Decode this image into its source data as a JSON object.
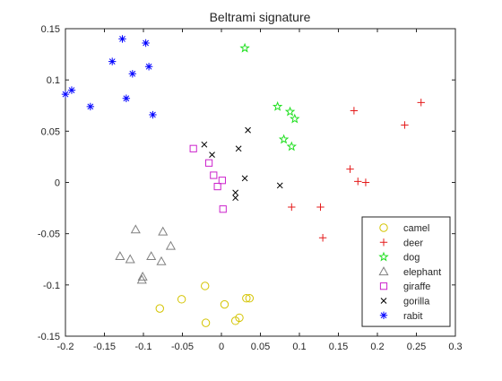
{
  "chart_data": {
    "type": "scatter",
    "title": "Beltrami signature",
    "xlabel": "",
    "ylabel": "",
    "xlim": [
      -0.2,
      0.3
    ],
    "ylim": [
      -0.15,
      0.15
    ],
    "xticks": [
      "-0.2",
      "-0.15",
      "-0.1",
      "-0.05",
      "0",
      "0.05",
      "0.1",
      "0.15",
      "0.2",
      "0.25",
      "0.3"
    ],
    "yticks": [
      "-0.15",
      "-0.1",
      "-0.05",
      "0",
      "0.05",
      "0.1",
      "0.15"
    ],
    "grid": false,
    "legend": {
      "position": "bottom-right"
    },
    "series": [
      {
        "name": "camel",
        "marker": "circle",
        "color": "#d4c400",
        "points": [
          [
            -0.079,
            -0.123
          ],
          [
            -0.051,
            -0.114
          ],
          [
            -0.021,
            -0.101
          ],
          [
            -0.02,
            -0.137
          ],
          [
            0.004,
            -0.119
          ],
          [
            0.018,
            -0.135
          ],
          [
            0.023,
            -0.132
          ],
          [
            0.032,
            -0.113
          ],
          [
            0.036,
            -0.113
          ]
        ]
      },
      {
        "name": "deer",
        "marker": "plus",
        "color": "#e41a1a",
        "points": [
          [
            0.09,
            -0.024
          ],
          [
            0.127,
            -0.024
          ],
          [
            0.13,
            -0.054
          ],
          [
            0.165,
            0.013
          ],
          [
            0.17,
            0.07
          ],
          [
            0.175,
            0.001
          ],
          [
            0.185,
            0.0
          ],
          [
            0.235,
            0.056
          ],
          [
            0.256,
            0.078
          ]
        ]
      },
      {
        "name": "dog",
        "marker": "star",
        "color": "#22e022",
        "points": [
          [
            0.03,
            0.131
          ],
          [
            0.072,
            0.074
          ],
          [
            0.08,
            0.042
          ],
          [
            0.088,
            0.069
          ],
          [
            0.09,
            0.035
          ],
          [
            0.094,
            0.062
          ]
        ]
      },
      {
        "name": "elephant",
        "marker": "triangle",
        "color": "#808080",
        "points": [
          [
            -0.13,
            -0.072
          ],
          [
            -0.117,
            -0.075
          ],
          [
            -0.11,
            -0.046
          ],
          [
            -0.101,
            -0.092
          ],
          [
            -0.102,
            -0.095
          ],
          [
            -0.09,
            -0.072
          ],
          [
            -0.077,
            -0.077
          ],
          [
            -0.075,
            -0.048
          ],
          [
            -0.065,
            -0.062
          ]
        ]
      },
      {
        "name": "giraffe",
        "marker": "square",
        "color": "#cc22cc",
        "points": [
          [
            -0.036,
            0.033
          ],
          [
            -0.016,
            0.019
          ],
          [
            -0.01,
            0.007
          ],
          [
            -0.005,
            -0.004
          ],
          [
            0.001,
            0.002
          ],
          [
            0.002,
            -0.026
          ]
        ]
      },
      {
        "name": "gorilla",
        "marker": "x",
        "color": "#000000",
        "points": [
          [
            -0.022,
            0.037
          ],
          [
            -0.012,
            0.027
          ],
          [
            0.018,
            -0.01
          ],
          [
            0.018,
            -0.015
          ],
          [
            0.022,
            0.033
          ],
          [
            0.03,
            0.004
          ],
          [
            0.034,
            0.051
          ],
          [
            0.075,
            -0.003
          ]
        ]
      },
      {
        "name": "rabit",
        "marker": "asterisk",
        "color": "#0000ff",
        "points": [
          [
            -0.2,
            0.086
          ],
          [
            -0.192,
            0.09
          ],
          [
            -0.168,
            0.074
          ],
          [
            -0.14,
            0.118
          ],
          [
            -0.127,
            0.14
          ],
          [
            -0.122,
            0.082
          ],
          [
            -0.114,
            0.106
          ],
          [
            -0.097,
            0.136
          ],
          [
            -0.093,
            0.113
          ],
          [
            -0.088,
            0.066
          ]
        ]
      }
    ]
  }
}
